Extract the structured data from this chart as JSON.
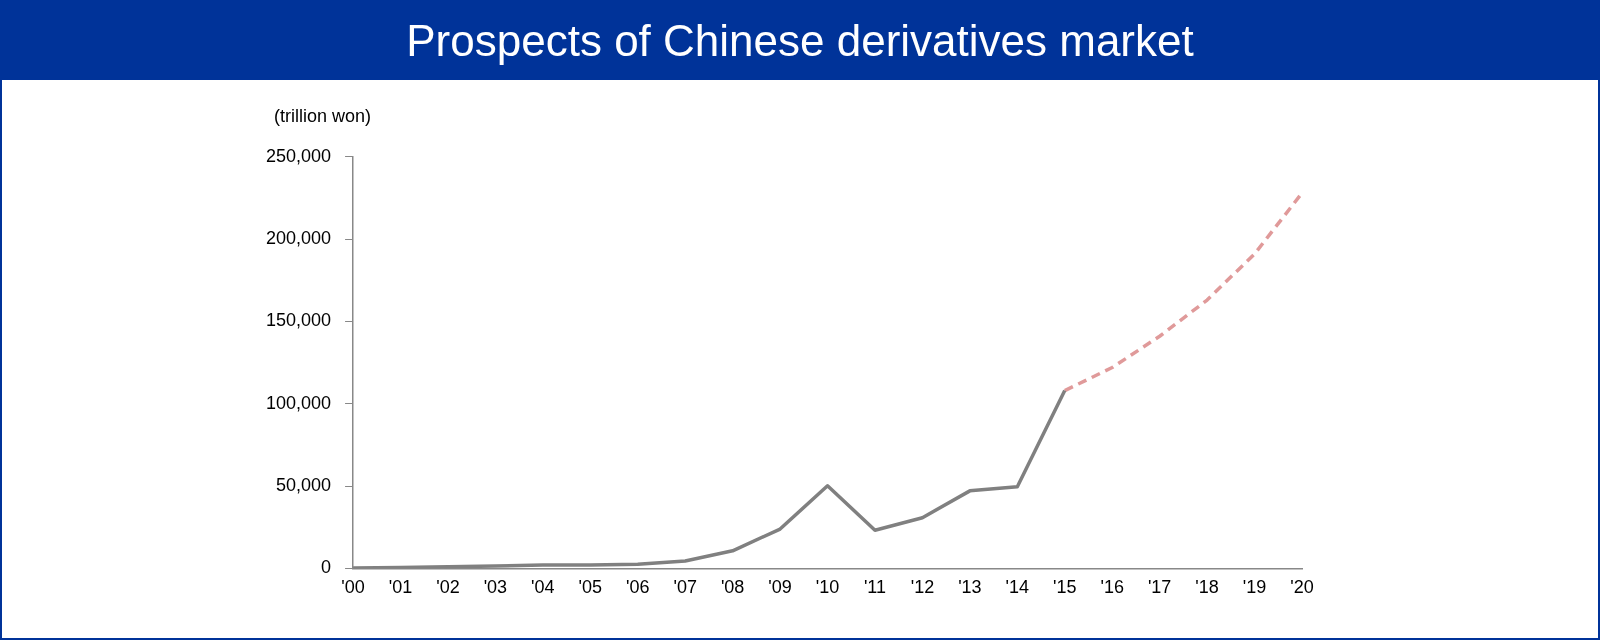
{
  "chart_data": {
    "type": "line",
    "title": "Prospects of Chinese derivatives market",
    "ylabel": "(trillion won)",
    "categories": [
      "'00",
      "'01",
      "'02",
      "'03",
      "'04",
      "'05",
      "'06",
      "'07",
      "'08",
      "'09",
      "'10",
      "'11",
      "'12",
      "'13",
      "'14",
      "'15",
      "'16",
      "'17",
      "'18",
      "'19",
      "'20"
    ],
    "series": [
      {
        "color": "#808080",
        "line_style": "solid",
        "values": [
          300,
          500,
          1000,
          1500,
          2000,
          2000,
          2500,
          4500,
          10700,
          23900,
          50200,
          23200,
          30800,
          47100,
          49600,
          108000,
          null,
          null,
          null,
          null,
          null
        ]
      },
      {
        "color": "#e09a9a",
        "line_style": "dashed",
        "values": [
          null,
          null,
          null,
          null,
          null,
          null,
          null,
          null,
          null,
          null,
          null,
          null,
          null,
          null,
          null,
          108000,
          122000,
          141000,
          163000,
          191000,
          228000
        ]
      }
    ],
    "ylim": [
      0,
      250000
    ],
    "yticks": [
      0,
      {
        "value": 50000,
        "label": "50,000"
      },
      {
        "value": 100000,
        "label": "100,000"
      },
      {
        "value": 150000,
        "label": "150,000"
      },
      {
        "value": 200000,
        "label": "200,000"
      },
      {
        "value": 250000,
        "label": "250,000"
      }
    ],
    "grid": false,
    "legend": false,
    "marker": "none"
  }
}
